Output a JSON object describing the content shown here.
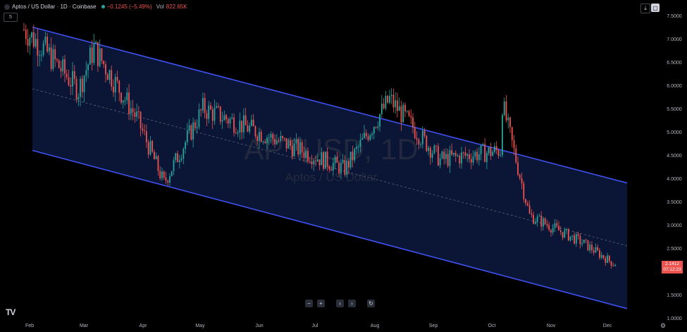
{
  "header": {
    "symbol": "Aptos / US Dollar · 1D · Coinbase",
    "change": "−0.1245 (−5.49%)",
    "volume_label": "Vol",
    "volume_value": "822.65K"
  },
  "indicator_button": "5",
  "watermark": {
    "ticker": "APTUSD, 1D",
    "name": "Aptos / US Dollar"
  },
  "price_tag": {
    "price": "2.1412",
    "countdown": "07:12:23"
  },
  "toolbar": {
    "zoom_out": "−",
    "zoom_in": "+",
    "scroll_left": "‹",
    "scroll_right": "›",
    "reset": "↻"
  },
  "colors": {
    "up": "#26a69a",
    "down": "#ef5350",
    "channel_line": "#3f51f0",
    "channel_fill": "#0b1636",
    "background": "#000000"
  },
  "chart_data": {
    "type": "candlestick",
    "title": "APTUSD, 1D",
    "subtitle": "Aptos / US Dollar",
    "x_tick_labels": [
      "Feb",
      "Mar",
      "Apr",
      "May",
      "Jun",
      "Jul",
      "Aug",
      "Sep",
      "Oct",
      "Nov",
      "Dec"
    ],
    "y_tick_labels": [
      "1.0000",
      "1.5000",
      "2.0000",
      "2.5000",
      "3.0000",
      "3.5000",
      "4.0000",
      "4.5000",
      "5.0000",
      "5.5000",
      "6.0000",
      "6.5000",
      "7.0000",
      "7.5000"
    ],
    "ylim": [
      1.0,
      7.6
    ],
    "x": [
      "Feb",
      "Mar",
      "Apr",
      "May",
      "Jun",
      "Jul",
      "Aug",
      "Sep",
      "Oct",
      "Nov",
      "Dec"
    ],
    "trend_close": [
      7.3,
      6.7,
      5.8,
      4.6,
      6.1,
      5.5,
      4.9,
      5.1,
      4.3,
      5.3,
      4.8,
      3.1,
      2.3,
      2.15
    ],
    "anchor_dates": [
      "Jan 28",
      "Feb 7",
      "Feb 25",
      "Mar 5",
      "Mar 27",
      "Apr 10",
      "Apr 30",
      "Jul 12",
      "Aug 4",
      "Aug 30",
      "Sep 30",
      "Oct 1",
      "Oct 15",
      "Nov 12",
      "Nov 28"
    ],
    "anchor_closes": [
      7.2,
      6.8,
      5.9,
      6.8,
      5.3,
      3.9,
      5.5,
      4.2,
      5.7,
      4.4,
      4.6,
      5.6,
      3.2,
      2.6,
      2.14
    ],
    "last_price": 2.1412,
    "channel": {
      "upper": {
        "start": [
          "Feb",
          7.25
        ],
        "end": [
          "Dec",
          3.9
        ]
      },
      "lower": {
        "start": [
          "Feb",
          4.6
        ],
        "end": [
          "Dec",
          1.2
        ]
      },
      "midline": "dashed"
    }
  }
}
